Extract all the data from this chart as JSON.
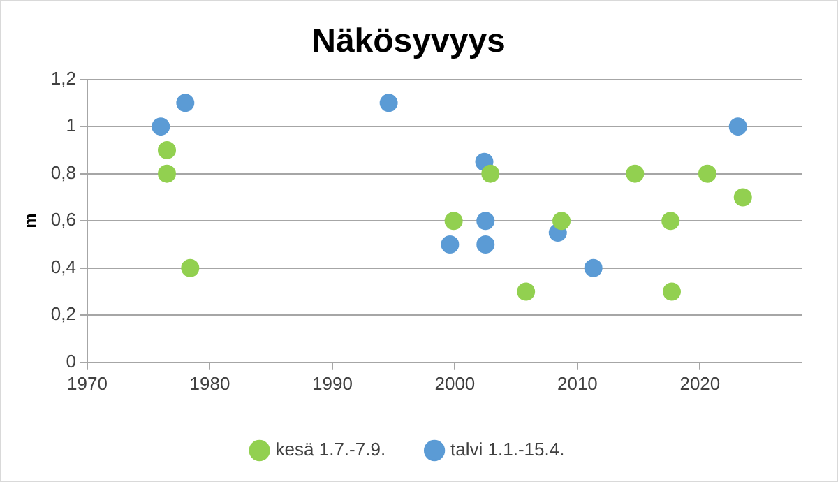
{
  "chart_data": {
    "type": "scatter",
    "title": "Näkösyvyys",
    "ylabel": "m",
    "xlim": [
      1970,
      2028.3
    ],
    "xticks": [
      1970,
      1980,
      1990,
      2000,
      2010,
      2020
    ],
    "ylim": [
      0,
      1.2
    ],
    "yticks": [
      0,
      {
        "value": 0.2,
        "label": "0,2"
      },
      {
        "value": 0.4,
        "label": "0,4"
      },
      {
        "value": 0.6,
        "label": "0,6"
      },
      {
        "value": 0.8,
        "label": "0,8"
      },
      1,
      {
        "value": 1.2,
        "label": "1,2"
      }
    ],
    "grid": "y",
    "legend": "bottom",
    "marker": "circle",
    "series": [
      {
        "name": "kesä 1.7.-7.9.",
        "color": "#92d050",
        "x": [
          1976.5,
          1976.5,
          1978.4,
          1999.9,
          2002.9,
          2005.8,
          2008.7,
          2014.7,
          2017.6,
          2017.7,
          2020.6,
          2023.5
        ],
        "values": [
          0.9,
          0.8,
          0.4,
          0.6,
          0.8,
          0.3,
          0.6,
          0.8,
          0.6,
          0.3,
          0.8,
          0.7
        ]
      },
      {
        "name": "talvi 1.1.-15.4.",
        "color": "#5b9bd5",
        "x": [
          1976.0,
          1978.0,
          1994.6,
          1999.6,
          2002.4,
          2002.5,
          2002.5,
          2008.4,
          2011.3,
          2023.1
        ],
        "values": [
          1.0,
          1.1,
          1.1,
          0.5,
          0.85,
          0.6,
          0.5,
          0.55,
          0.4,
          1.0
        ]
      }
    ]
  }
}
